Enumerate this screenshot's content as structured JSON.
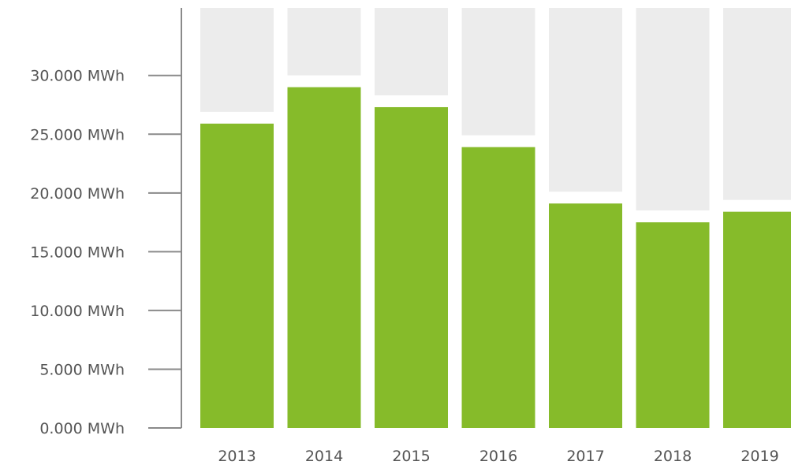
{
  "chart_data": {
    "type": "bar",
    "categories": [
      "2013",
      "2014",
      "2015",
      "2016",
      "2017",
      "2018",
      "2019"
    ],
    "series": [
      {
        "values": [
          25900,
          29000,
          27300,
          23900,
          19100,
          17500,
          18400
        ]
      }
    ],
    "background_bars": true,
    "title": "",
    "xlabel": "",
    "ylabel": "",
    "ylim": [
      0,
      35750
    ],
    "yticks": [
      0,
      5000,
      10000,
      15000,
      20000,
      25000,
      30000
    ],
    "ytick_labels": [
      "0.000 MWh",
      "5.000 MWh",
      "10.000 MWh",
      "15.000 MWh",
      "20.000 MWh",
      "25.000 MWh",
      "30.000 MWh"
    ],
    "grid": false,
    "legend": "none",
    "colors": {
      "bar": "#86bb2a",
      "background_bar": "#ececec",
      "axis": "#8a8a8a",
      "text": "#555555"
    }
  }
}
